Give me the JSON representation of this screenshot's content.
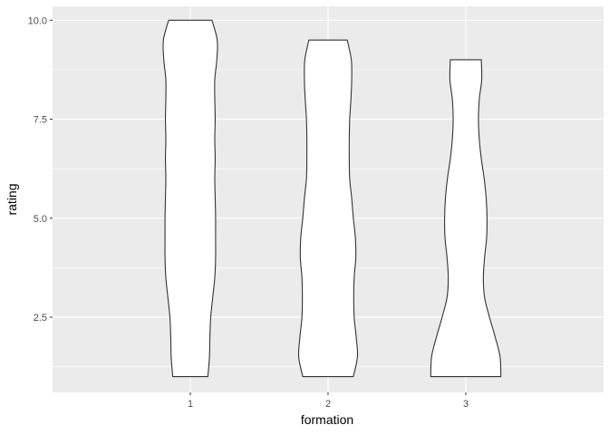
{
  "chart_data": {
    "type": "violin",
    "xlabel": "formation",
    "ylabel": "rating",
    "categories": [
      "1",
      "2",
      "3"
    ],
    "ylim": [
      0.6,
      10.35
    ],
    "y_ticks": [
      2.5,
      5.0,
      7.5,
      10.0
    ],
    "y_tick_labels": [
      "2.5",
      "5.0",
      "7.5",
      "10.0"
    ],
    "grid": true,
    "panel_background": "#ebebeb",
    "grid_color": "#ffffff",
    "violin_fill": "#ffffff",
    "violin_stroke": "#333333",
    "series": [
      {
        "category": "1",
        "min": 1.0,
        "max": 10.0,
        "profile": [
          [
            1.0,
            0.43
          ],
          [
            1.5,
            0.47
          ],
          [
            2.0,
            0.48
          ],
          [
            2.5,
            0.5
          ],
          [
            3.0,
            0.55
          ],
          [
            3.5,
            0.6
          ],
          [
            4.0,
            0.62
          ],
          [
            4.5,
            0.62
          ],
          [
            5.0,
            0.62
          ],
          [
            5.5,
            0.61
          ],
          [
            6.0,
            0.6
          ],
          [
            6.5,
            0.61
          ],
          [
            7.0,
            0.6
          ],
          [
            7.5,
            0.61
          ],
          [
            8.0,
            0.6
          ],
          [
            8.5,
            0.6
          ],
          [
            9.0,
            0.65
          ],
          [
            9.5,
            0.66
          ],
          [
            10.0,
            0.53
          ]
        ]
      },
      {
        "category": "2",
        "min": 1.0,
        "max": 9.5,
        "profile": [
          [
            1.0,
            0.62
          ],
          [
            1.5,
            0.72
          ],
          [
            2.0,
            0.69
          ],
          [
            2.5,
            0.64
          ],
          [
            3.0,
            0.63
          ],
          [
            3.5,
            0.64
          ],
          [
            4.0,
            0.68
          ],
          [
            4.5,
            0.67
          ],
          [
            5.0,
            0.62
          ],
          [
            5.5,
            0.58
          ],
          [
            6.0,
            0.53
          ],
          [
            6.5,
            0.52
          ],
          [
            7.0,
            0.52
          ],
          [
            7.5,
            0.53
          ],
          [
            8.0,
            0.56
          ],
          [
            8.5,
            0.58
          ],
          [
            9.0,
            0.57
          ],
          [
            9.5,
            0.47
          ]
        ]
      },
      {
        "category": "3",
        "min": 1.0,
        "max": 9.0,
        "profile": [
          [
            1.0,
            0.86
          ],
          [
            1.5,
            0.84
          ],
          [
            2.0,
            0.72
          ],
          [
            2.5,
            0.58
          ],
          [
            3.0,
            0.46
          ],
          [
            3.5,
            0.43
          ],
          [
            4.0,
            0.46
          ],
          [
            4.5,
            0.51
          ],
          [
            5.0,
            0.52
          ],
          [
            5.5,
            0.5
          ],
          [
            6.0,
            0.45
          ],
          [
            6.5,
            0.38
          ],
          [
            7.0,
            0.33
          ],
          [
            7.5,
            0.31
          ],
          [
            8.0,
            0.33
          ],
          [
            8.5,
            0.39
          ],
          [
            9.0,
            0.38
          ]
        ]
      }
    ]
  }
}
